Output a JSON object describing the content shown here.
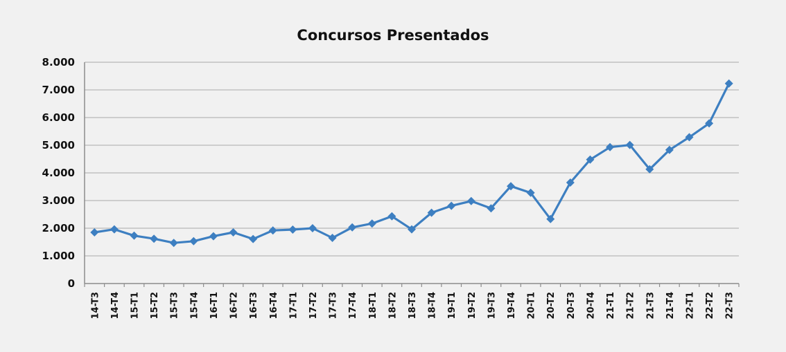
{
  "chart_data": {
    "type": "line",
    "title": "Concursos Presentados",
    "xlabel": "",
    "ylabel": "",
    "ylim": [
      0,
      8000
    ],
    "y_ticks": [
      "0",
      "1.000",
      "2.000",
      "3.000",
      "4.000",
      "5.000",
      "6.000",
      "7.000",
      "8.000"
    ],
    "y_tick_values": [
      0,
      1000,
      2000,
      3000,
      4000,
      5000,
      6000,
      7000,
      8000
    ],
    "grid": true,
    "legend": "none",
    "categories": [
      "14-T3",
      "14-T4",
      "15-T1",
      "15-T2",
      "15-T3",
      "15-T4",
      "16-T1",
      "16-T2",
      "16-T3",
      "16-T4",
      "17-T1",
      "17-T2",
      "17-T3",
      "17-T4",
      "18-T1",
      "18-T2",
      "18-T3",
      "18-T4",
      "19-T1",
      "19-T2",
      "19-T3",
      "19-T4",
      "20-T1",
      "20-T2",
      "20-T3",
      "20-T4",
      "21-T1",
      "21-T2",
      "21-T3",
      "21-T4",
      "22-T1",
      "22-T2",
      "22-T3"
    ],
    "series": [
      {
        "values": [
          1850,
          1960,
          1730,
          1620,
          1470,
          1530,
          1710,
          1850,
          1610,
          1920,
          1950,
          2000,
          1650,
          2030,
          2170,
          2430,
          1960,
          2560,
          2810,
          2980,
          2720,
          3520,
          3280,
          2330,
          3650,
          4480,
          4930,
          5010,
          4130,
          4830,
          5290,
          5790,
          7230
        ],
        "color": "#3d7fc1"
      }
    ]
  }
}
